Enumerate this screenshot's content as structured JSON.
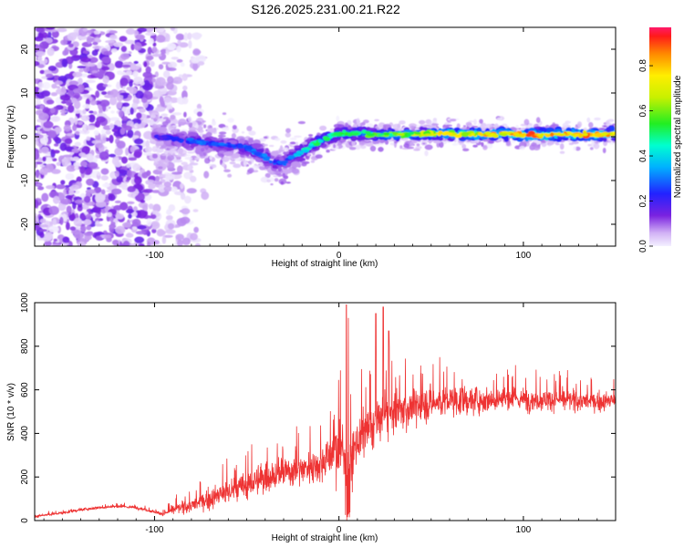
{
  "title": "S126.2025.231.00.21.R22",
  "chart_data": [
    {
      "type": "heatmap",
      "name": "spectrogram",
      "xlabel": "Height of straight line (km)",
      "ylabel": "Frequency (Hz)",
      "xlim": [
        -165,
        150
      ],
      "ylim": [
        -25,
        25
      ],
      "xticks": [
        -100,
        0,
        100
      ],
      "yticks": [
        -20,
        -10,
        0,
        10,
        20
      ],
      "colorbar": {
        "label": "Normalized spectral amplitude",
        "range": [
          0,
          0.97
        ],
        "ticks": [
          0.0,
          0.2,
          0.4,
          0.6,
          0.8
        ]
      },
      "ridge": {
        "x": [
          -100,
          -90,
          -80,
          -70,
          -60,
          -50,
          -45,
          -40,
          -35,
          -30,
          -25,
          -20,
          -15,
          -10,
          -5,
          0,
          10,
          20,
          30,
          40,
          50,
          60,
          70,
          80,
          90,
          100,
          110,
          120,
          130,
          140,
          150
        ],
        "freq": [
          0.2,
          -0.5,
          -1.0,
          -1.5,
          -2.0,
          -2.5,
          -3.5,
          -4.5,
          -6.0,
          -6.0,
          -4.5,
          -3.5,
          -2.0,
          -1.0,
          0.0,
          0.7,
          0.8,
          0.5,
          0.4,
          0.5,
          0.7,
          0.8,
          0.6,
          0.5,
          0.8,
          0.5,
          0.4,
          0.6,
          0.5,
          0.5,
          0.8
        ],
        "amplitude": [
          0.2,
          0.25,
          0.3,
          0.3,
          0.3,
          0.3,
          0.35,
          0.35,
          0.3,
          0.3,
          0.35,
          0.45,
          0.5,
          0.55,
          0.5,
          0.55,
          0.6,
          0.6,
          0.65,
          0.7,
          0.75,
          0.8,
          0.8,
          0.85,
          0.85,
          0.9,
          0.9,
          0.9,
          0.9,
          0.85,
          0.85
        ]
      }
    },
    {
      "type": "line",
      "name": "snr",
      "xlabel": "Height of straight line (km)",
      "ylabel": "SNR (10 * v/v)",
      "xlim": [
        -165,
        150
      ],
      "ylim": [
        0,
        1000
      ],
      "xticks": [
        -100,
        0,
        100
      ],
      "yticks": [
        0,
        200,
        400,
        600,
        800,
        1000
      ],
      "color": "#ee3333",
      "envelope": {
        "x": [
          -165,
          -150,
          -140,
          -130,
          -120,
          -110,
          -100,
          -95,
          -90,
          -80,
          -70,
          -60,
          -50,
          -40,
          -30,
          -20,
          -10,
          -5,
          0,
          5,
          10,
          20,
          30,
          40,
          50,
          60,
          70,
          80,
          90,
          100,
          110,
          120,
          130,
          140,
          150
        ],
        "mean": [
          20,
          35,
          50,
          60,
          65,
          60,
          40,
          30,
          50,
          70,
          100,
          130,
          160,
          200,
          220,
          240,
          260,
          300,
          340,
          260,
          360,
          450,
          500,
          520,
          540,
          550,
          550,
          555,
          560,
          555,
          555,
          555,
          550,
          545,
          550
        ],
        "spread": [
          8,
          10,
          10,
          10,
          10,
          10,
          10,
          12,
          30,
          50,
          70,
          90,
          100,
          110,
          110,
          110,
          120,
          150,
          220,
          200,
          170,
          150,
          140,
          130,
          120,
          110,
          100,
          90,
          90,
          80,
          75,
          70,
          70,
          65,
          60
        ]
      },
      "peaks": [
        {
          "x": 4,
          "y": 990
        },
        {
          "x": 5,
          "y": 930
        },
        {
          "x": 20,
          "y": 950
        },
        {
          "x": 24,
          "y": 980
        },
        {
          "x": 27,
          "y": 870
        }
      ]
    }
  ]
}
